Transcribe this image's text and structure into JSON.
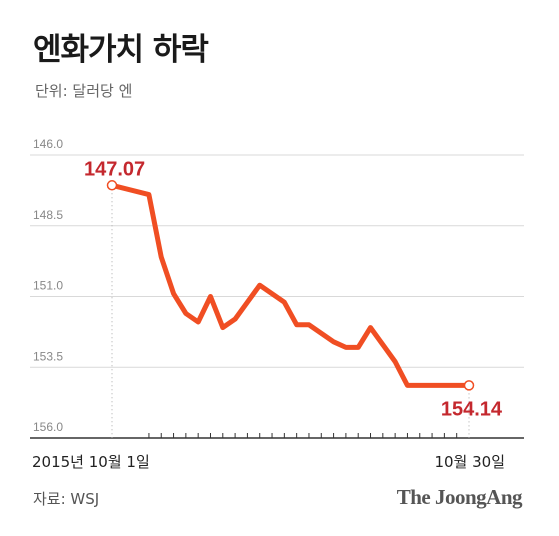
{
  "title": "엔화가치 하락",
  "unit_label": "단위: 달러당 엔",
  "source": "자료: WSJ",
  "brand": "The JoongAng",
  "colors": {
    "line": "#f04e23",
    "label": "#c4282e",
    "grid": "#d9d9d9",
    "axis": "#333333"
  },
  "chart_data": {
    "type": "line",
    "title": "엔화가치 하락",
    "ylabel": "단위: 달러당 엔",
    "y_inverted": true,
    "ylim": [
      146.0,
      156.0
    ],
    "yticks": [
      "146.0",
      "148.5",
      "151.0",
      "153.5",
      "156.0"
    ],
    "grid": true,
    "x_labels": {
      "start": "2015년 10월 1일",
      "end": "10월 30일"
    },
    "x": [
      1,
      4,
      5,
      6,
      7,
      8,
      9,
      10,
      11,
      12,
      13,
      14,
      15,
      16,
      17,
      18,
      19,
      20,
      21,
      22,
      23,
      24,
      25,
      26,
      27,
      28,
      29,
      30
    ],
    "series": [
      {
        "values": [
          147.07,
          147.4,
          149.6,
          150.9,
          151.6,
          151.9,
          151.0,
          152.1,
          151.8,
          151.2,
          150.6,
          150.9,
          151.2,
          152.0,
          152.0,
          152.3,
          152.6,
          152.8,
          152.8,
          152.1,
          152.7,
          153.3,
          154.14,
          154.14,
          154.14,
          154.14,
          154.14,
          154.14
        ],
        "labels": {
          "first": "147.07",
          "last": "154.14"
        }
      }
    ]
  }
}
